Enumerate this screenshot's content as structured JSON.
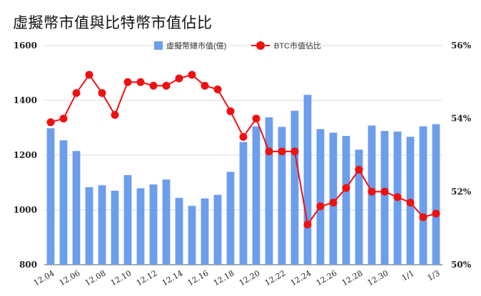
{
  "chart_data": {
    "type": "bar",
    "title": "虛擬幣市值與比特幣市值佔比",
    "categories": [
      "12.04",
      "12.05",
      "12.06",
      "12.07",
      "12.08",
      "12.09",
      "12.10",
      "12.11",
      "12.12",
      "12.13",
      "12.14",
      "12.15",
      "12.16",
      "12.17",
      "12.18",
      "12.19",
      "12.20",
      "12.21",
      "12.22",
      "12.23",
      "12.24",
      "12.25",
      "12.26",
      "12.27",
      "12.28",
      "12.29",
      "12.30",
      "12.31",
      "1/1",
      "1/2",
      "1/3"
    ],
    "x_tick_labels": [
      "12.04",
      "12.06",
      "12.08",
      "12.10",
      "12.12",
      "12.14",
      "12.16",
      "12.18",
      "12.20",
      "12.22",
      "12.24",
      "12.26",
      "12.28",
      "12.30",
      "1/1",
      "1/3"
    ],
    "series": [
      {
        "name": "虛擬幣總市值(億)",
        "type": "bar",
        "axis": "left",
        "color": "#6d9eeb",
        "values": [
          1298,
          1254,
          1215,
          1083,
          1090,
          1070,
          1127,
          1079,
          1093,
          1111,
          1044,
          1015,
          1042,
          1055,
          1139,
          1248,
          1305,
          1338,
          1303,
          1362,
          1420,
          1295,
          1282,
          1270,
          1220,
          1308,
          1288,
          1286,
          1267,
          1305,
          1313
        ]
      },
      {
        "name": "BTC市值佔比",
        "type": "line",
        "axis": "right",
        "color": "#ee1111",
        "values": [
          53.9,
          54.0,
          54.7,
          55.2,
          54.7,
          54.1,
          55.0,
          55.0,
          54.9,
          54.9,
          55.1,
          55.2,
          54.9,
          54.8,
          54.2,
          53.5,
          54.0,
          53.1,
          53.1,
          53.1,
          51.1,
          51.6,
          51.7,
          52.1,
          52.6,
          52.0,
          52.0,
          51.85,
          51.7,
          51.3,
          51.4
        ]
      }
    ],
    "y_left": {
      "ylim": [
        800,
        1600
      ],
      "ticks": [
        "800",
        "1000",
        "1200",
        "1400",
        "1600"
      ]
    },
    "y_right": {
      "ylim": [
        50,
        56
      ],
      "ticks": [
        "50%",
        "52%",
        "54%",
        "56%"
      ]
    },
    "grid": "horizontal",
    "legend_position": "top-center"
  }
}
